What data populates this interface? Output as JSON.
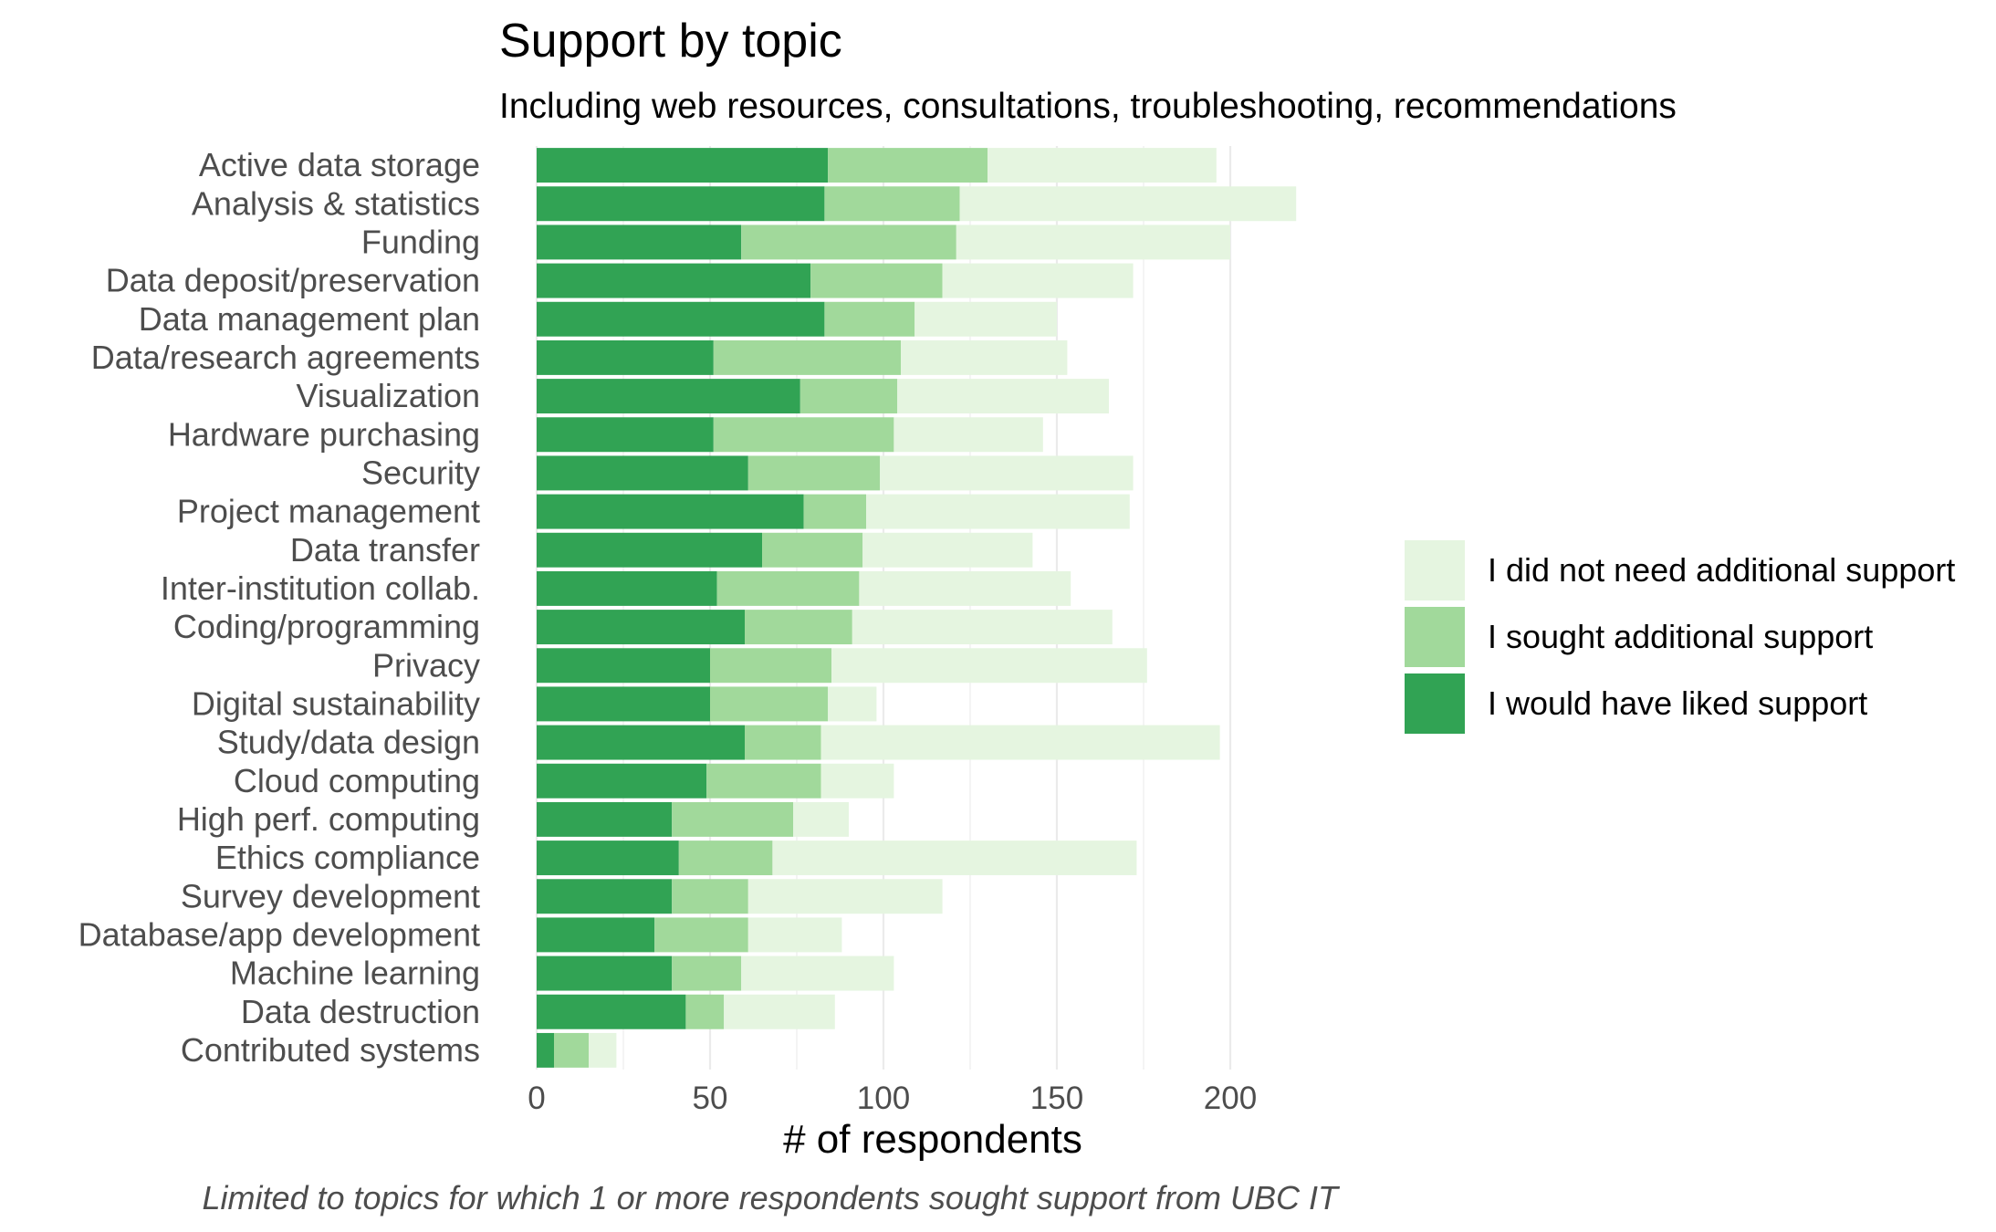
{
  "chart_data": {
    "type": "bar",
    "orientation": "horizontal",
    "stacked": true,
    "title": "Support by topic",
    "subtitle": "Including web resources, consultations, troubleshooting, recommendations",
    "xlabel": "# of respondents",
    "ylabel": "",
    "caption": "Limited to topics for which 1 or more respondents sought support from UBC IT",
    "xlim": [
      0,
      225
    ],
    "x_ticks": [
      0,
      50,
      100,
      150,
      200
    ],
    "grid": true,
    "legend_position": "right",
    "categories": [
      "Active data storage",
      "Analysis & statistics",
      "Funding",
      "Data deposit/preservation",
      "Data management plan",
      "Data/research agreements",
      "Visualization",
      "Hardware purchasing",
      "Security",
      "Project management",
      "Data transfer",
      "Inter-institution collab.",
      "Coding/programming",
      "Privacy",
      "Digital sustainability",
      "Study/data design",
      "Cloud computing",
      "High perf. computing",
      "Ethics compliance",
      "Survey development",
      "Database/app development",
      "Machine learning",
      "Data destruction",
      "Contributed systems"
    ],
    "series": [
      {
        "name": "I would have liked support",
        "color": "#31a354",
        "values": [
          84,
          83,
          59,
          79,
          83,
          51,
          76,
          51,
          61,
          77,
          65,
          52,
          60,
          50,
          50,
          60,
          49,
          39,
          41,
          39,
          34,
          39,
          43,
          5
        ]
      },
      {
        "name": "I sought additional support",
        "color": "#a1d99b",
        "values": [
          46,
          39,
          62,
          38,
          26,
          54,
          28,
          52,
          38,
          18,
          29,
          41,
          31,
          35,
          34,
          22,
          33,
          35,
          27,
          22,
          27,
          20,
          11,
          10
        ]
      },
      {
        "name": "I did not need additional support",
        "color": "#e5f5e0",
        "values": [
          66,
          97,
          79,
          55,
          41,
          48,
          61,
          43,
          73,
          76,
          49,
          61,
          75,
          91,
          14,
          115,
          21,
          16,
          105,
          56,
          27,
          44,
          32,
          8
        ]
      }
    ],
    "legend_order": [
      "I did not need additional support",
      "I sought additional support",
      "I would have liked support"
    ]
  }
}
